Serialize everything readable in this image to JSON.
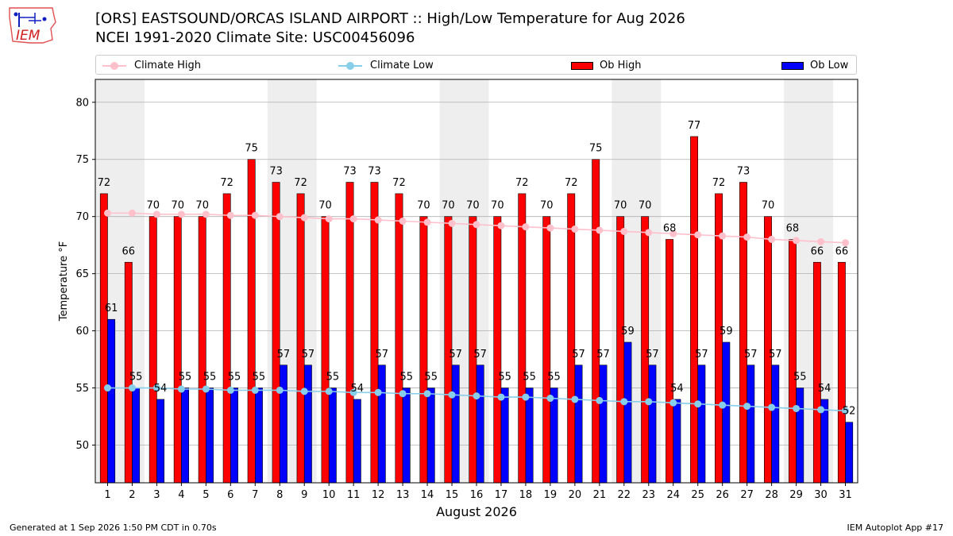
{
  "header": {
    "title_line1": "[ORS] EASTSOUND/ORCAS ISLAND AIRPORT :: High/Low Temperature for Aug 2026",
    "title_line2": "NCEI 1991-2020 Climate Site: USC00456096",
    "logo_text": "IEM"
  },
  "footer": {
    "left": "Generated at 1 Sep 2026 1:50 PM CDT in 0.70s",
    "right": "IEM Autoplot App #17"
  },
  "legend": {
    "climate_high": "Climate High",
    "climate_low": "Climate Low",
    "ob_high": "Ob High",
    "ob_low": "Ob Low"
  },
  "colors": {
    "ob_high": "#ff0000",
    "ob_low": "#0000ff",
    "climate_high": "#ffc0cb",
    "climate_low": "#87ceeb",
    "weekend_band": "#eeeeee",
    "grid": "#b0b0b0"
  },
  "chart_data": {
    "type": "bar",
    "xlabel": "August 2026",
    "ylabel": "Temperature °F",
    "ylim": [
      46.7,
      82
    ],
    "yticks": [
      50,
      55,
      60,
      65,
      70,
      75,
      80
    ],
    "grid": "horizontal",
    "legend_position": "top",
    "categories": [
      "1",
      "2",
      "3",
      "4",
      "5",
      "6",
      "7",
      "8",
      "9",
      "10",
      "11",
      "12",
      "13",
      "14",
      "15",
      "16",
      "17",
      "18",
      "19",
      "20",
      "21",
      "22",
      "23",
      "24",
      "25",
      "26",
      "27",
      "28",
      "29",
      "30",
      "31"
    ],
    "weekend_days": [
      1,
      8,
      15,
      22,
      29
    ],
    "series": [
      {
        "name": "Ob High",
        "kind": "bar",
        "values": [
          72,
          66,
          70,
          70,
          70,
          72,
          75,
          73,
          72,
          70,
          73,
          73,
          72,
          70,
          70,
          70,
          70,
          72,
          70,
          72,
          75,
          70,
          70,
          68,
          77,
          72,
          73,
          70,
          68,
          66,
          66
        ]
      },
      {
        "name": "Ob Low",
        "kind": "bar",
        "values": [
          61,
          55,
          54,
          55,
          55,
          55,
          55,
          57,
          57,
          55,
          54,
          57,
          55,
          55,
          57,
          57,
          55,
          55,
          55,
          57,
          57,
          59,
          57,
          54,
          57,
          59,
          57,
          57,
          55,
          54,
          52
        ]
      },
      {
        "name": "Climate High",
        "kind": "line",
        "values": [
          70.3,
          70.3,
          70.2,
          70.2,
          70.2,
          70.1,
          70.1,
          70.0,
          69.9,
          69.8,
          69.8,
          69.7,
          69.6,
          69.5,
          69.4,
          69.3,
          69.2,
          69.1,
          69.0,
          68.9,
          68.8,
          68.7,
          68.6,
          68.5,
          68.4,
          68.3,
          68.2,
          68.0,
          67.9,
          67.8,
          67.7
        ]
      },
      {
        "name": "Climate Low",
        "kind": "line",
        "values": [
          55.0,
          55.0,
          55.0,
          54.9,
          54.9,
          54.8,
          54.8,
          54.8,
          54.7,
          54.7,
          54.6,
          54.6,
          54.5,
          54.5,
          54.4,
          54.3,
          54.2,
          54.2,
          54.1,
          54.0,
          53.9,
          53.8,
          53.8,
          53.7,
          53.6,
          53.5,
          53.4,
          53.3,
          53.2,
          53.1,
          53.0
        ]
      }
    ]
  }
}
